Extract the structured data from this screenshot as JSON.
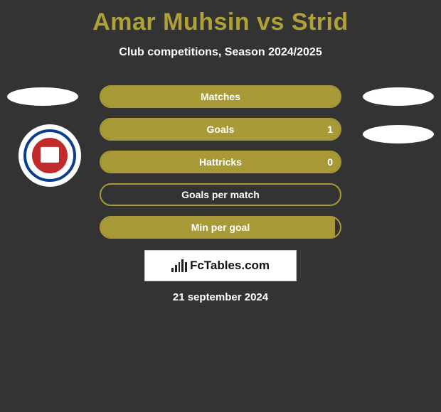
{
  "title": "Amar Muhsin vs Strid",
  "subtitle": "Club competitions, Season 2024/2025",
  "colors": {
    "title_color": "#b0a038",
    "bg": "#333333",
    "bar_fill": "#a89a36",
    "bar_border": "#a89a36",
    "bar_empty_border": "#a89a36",
    "text": "#ffffff"
  },
  "bars": [
    {
      "label": "Matches",
      "value": "",
      "fill_pct": 100,
      "show_value": false
    },
    {
      "label": "Goals",
      "value": "1",
      "fill_pct": 100,
      "show_value": true
    },
    {
      "label": "Hattricks",
      "value": "0",
      "fill_pct": 100,
      "show_value": true
    },
    {
      "label": "Goals per match",
      "value": "",
      "fill_pct": 0,
      "show_value": false
    },
    {
      "label": "Min per goal",
      "value": "",
      "fill_pct": 98,
      "show_value": false
    }
  ],
  "brand": "FcTables.com",
  "date": "21 september 2024",
  "crest": {
    "outer_bg": "#ffffff",
    "ring_color": "#0b3e8c",
    "inner_bg": "#c22b2b"
  },
  "brand_bars": [
    6,
    10,
    14,
    18,
    14
  ]
}
